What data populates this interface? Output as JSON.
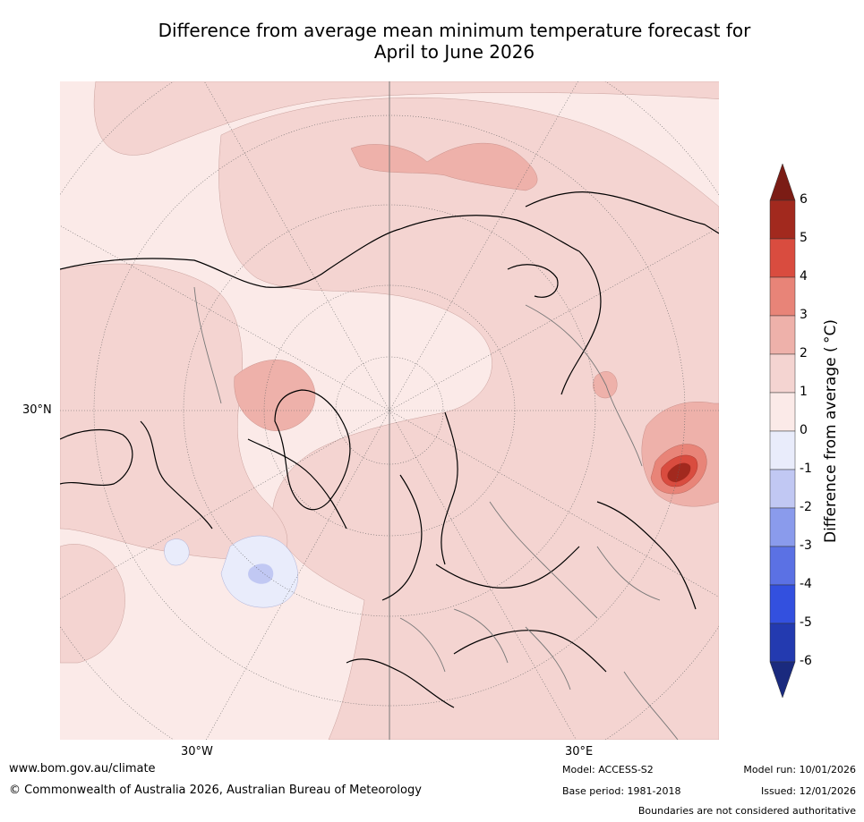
{
  "title_line1": "Difference from average mean minimum temperature forecast for",
  "title_line2": "April to June 2026",
  "map": {
    "lon_labels": [
      "30°W",
      "30°E"
    ],
    "lat_labels": [
      "30°N"
    ]
  },
  "colorbar": {
    "title": "Difference from average ( °C)",
    "ticks": [
      "6",
      "5",
      "4",
      "3",
      "2",
      "1",
      "0",
      "-1",
      "-2",
      "-3",
      "-4",
      "-5",
      "-6"
    ],
    "colors": [
      "#a2291e",
      "#d94c3f",
      "#e88478",
      "#eeb1aa",
      "#f4d4d1",
      "#fbeae8",
      "#e9ecfb",
      "#c1c8f3",
      "#8a9bec",
      "#5b71e4",
      "#3350df",
      "#233ab0"
    ],
    "top_arrow_color": "#7b1c15",
    "bottom_arrow_color": "#1a2a7e"
  },
  "footer": {
    "website": "www.bom.gov.au/climate",
    "copyright": "© Commonwealth of Australia 2026, Australian Bureau of Meteorology",
    "model": "Model: ACCESS-S2",
    "base_period": "Base period: 1981-2018",
    "model_run": "Model run: 10/01/2026",
    "issued": "Issued: 12/01/2026",
    "disclaimer": "Boundaries are not considered authoritative"
  }
}
